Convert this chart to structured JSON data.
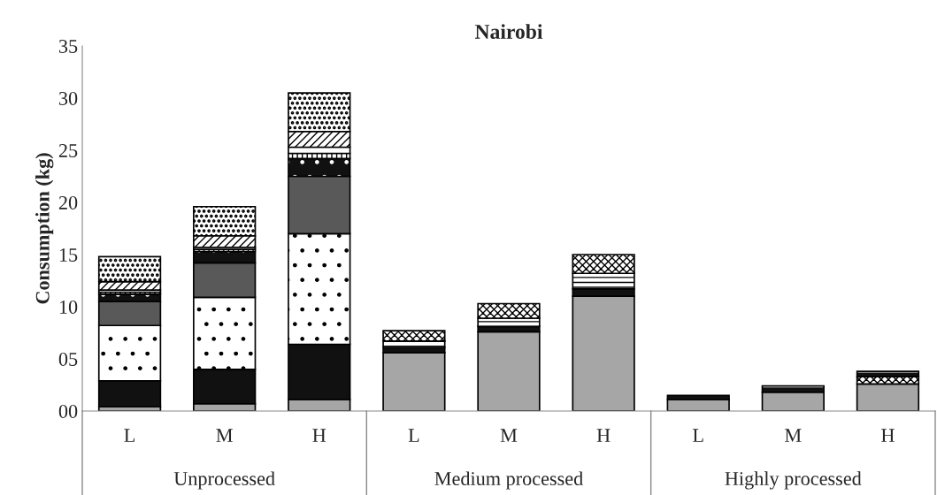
{
  "chart_data": {
    "type": "bar",
    "title": "Nairobi",
    "ylabel": "Consumption (kg)",
    "stacked": true,
    "categories": [
      "L",
      "M",
      "H",
      "L",
      "M",
      "H",
      "L",
      "M",
      "H"
    ],
    "annotations": [
      "Unprocessed",
      "Medium processed",
      "Highly processed"
    ],
    "ylim": [
      0,
      35
    ],
    "yticks": [
      {
        "value": 0,
        "label": "00"
      },
      {
        "value": 5,
        "label": "05"
      },
      10,
      15,
      20,
      25,
      30,
      35
    ],
    "grid": false,
    "legend": false,
    "series": [
      {
        "color": "#a6a6a6",
        "values": [
          0.4,
          0.7,
          1.1,
          5.6,
          7.6,
          11.0,
          1.1,
          1.8,
          2.6
        ]
      },
      {
        "color": "#111111",
        "values": [
          2.5,
          3.3,
          5.3,
          0.5,
          0.5,
          0.7,
          null,
          null,
          null
        ]
      },
      {
        "color": "#ffffff",
        "values": [
          5.3,
          6.9,
          10.6,
          null,
          null,
          null,
          null,
          null,
          null
        ]
      },
      {
        "color": "#595959",
        "values": [
          2.3,
          3.3,
          5.5,
          null,
          null,
          null,
          null,
          null,
          null
        ]
      },
      {
        "color": "#111111",
        "values": [
          0.7,
          1.1,
          1.7,
          null,
          null,
          null,
          null,
          null,
          null
        ]
      },
      {
        "color": "#ffffff",
        "values": [
          0.2,
          0.2,
          0.5,
          null,
          null,
          null,
          null,
          null,
          null
        ]
      },
      {
        "color": "#ffffff",
        "values": [
          0.2,
          0.2,
          0.6,
          null,
          null,
          null,
          null,
          null,
          null
        ]
      },
      {
        "color": "#ffffff",
        "values": [
          0.8,
          1.1,
          1.5,
          null,
          null,
          null,
          null,
          null,
          null
        ]
      },
      {
        "color": "#ffffff",
        "values": [
          2.4,
          2.8,
          3.7,
          null,
          null,
          null,
          null,
          null,
          null
        ]
      },
      {
        "color": "#ffffff",
        "values": [
          null,
          null,
          null,
          0.6,
          0.8,
          1.5,
          null,
          null,
          null
        ]
      },
      {
        "color": "#ffffff",
        "values": [
          null,
          null,
          null,
          1.0,
          1.4,
          1.8,
          null,
          null,
          0.7
        ]
      },
      {
        "color": "#111111",
        "values": [
          null,
          null,
          null,
          null,
          null,
          null,
          0.4,
          0.6,
          0.5
        ]
      }
    ]
  }
}
